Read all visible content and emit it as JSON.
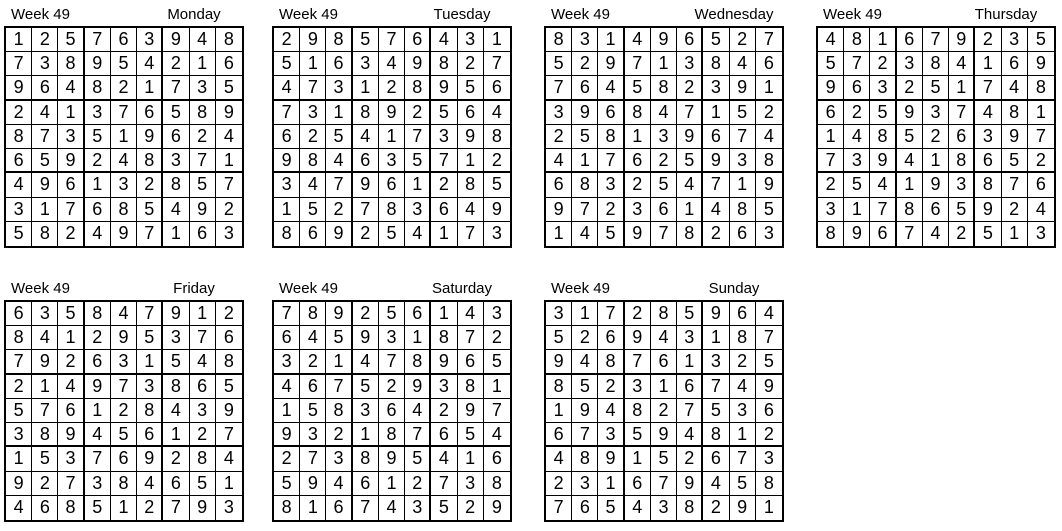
{
  "page": {
    "background": "#ffffff",
    "text_color": "#000000",
    "grid_line_color": "#000000",
    "content_type": "sudoku-solutions-sheet"
  },
  "puzzles": [
    {
      "week_label": "Week 49",
      "day": "Monday",
      "grid": [
        [
          1,
          2,
          5,
          7,
          6,
          3,
          9,
          4,
          8
        ],
        [
          7,
          3,
          8,
          9,
          5,
          4,
          2,
          1,
          6
        ],
        [
          9,
          6,
          4,
          8,
          2,
          1,
          7,
          3,
          5
        ],
        [
          2,
          4,
          1,
          3,
          7,
          6,
          5,
          8,
          9
        ],
        [
          8,
          7,
          3,
          5,
          1,
          9,
          6,
          2,
          4
        ],
        [
          6,
          5,
          9,
          2,
          4,
          8,
          3,
          7,
          1
        ],
        [
          4,
          9,
          6,
          1,
          3,
          2,
          8,
          5,
          7
        ],
        [
          3,
          1,
          7,
          6,
          8,
          5,
          4,
          9,
          2
        ],
        [
          5,
          8,
          2,
          4,
          9,
          7,
          1,
          6,
          3
        ]
      ]
    },
    {
      "week_label": "Week 49",
      "day": "Tuesday",
      "grid": [
        [
          2,
          9,
          8,
          5,
          7,
          6,
          4,
          3,
          1
        ],
        [
          5,
          1,
          6,
          3,
          4,
          9,
          8,
          2,
          7
        ],
        [
          4,
          7,
          3,
          1,
          2,
          8,
          9,
          5,
          6
        ],
        [
          7,
          3,
          1,
          8,
          9,
          2,
          5,
          6,
          4
        ],
        [
          6,
          2,
          5,
          4,
          1,
          7,
          3,
          9,
          8
        ],
        [
          9,
          8,
          4,
          6,
          3,
          5,
          7,
          1,
          2
        ],
        [
          3,
          4,
          7,
          9,
          6,
          1,
          2,
          8,
          5
        ],
        [
          1,
          5,
          2,
          7,
          8,
          3,
          6,
          4,
          9
        ],
        [
          8,
          6,
          9,
          2,
          5,
          4,
          1,
          7,
          3
        ]
      ]
    },
    {
      "week_label": "Week 49",
      "day": "Wednesday",
      "grid": [
        [
          8,
          3,
          1,
          4,
          9,
          6,
          5,
          2,
          7
        ],
        [
          5,
          2,
          9,
          7,
          1,
          3,
          8,
          4,
          6
        ],
        [
          7,
          6,
          4,
          5,
          8,
          2,
          3,
          9,
          1
        ],
        [
          3,
          9,
          6,
          8,
          4,
          7,
          1,
          5,
          2
        ],
        [
          2,
          5,
          8,
          1,
          3,
          9,
          6,
          7,
          4
        ],
        [
          4,
          1,
          7,
          6,
          2,
          5,
          9,
          3,
          8
        ],
        [
          6,
          8,
          3,
          2,
          5,
          4,
          7,
          1,
          9
        ],
        [
          9,
          7,
          2,
          3,
          6,
          1,
          4,
          8,
          5
        ],
        [
          1,
          4,
          5,
          9,
          7,
          8,
          2,
          6,
          3
        ]
      ]
    },
    {
      "week_label": "Week 49",
      "day": "Thursday",
      "grid": [
        [
          4,
          8,
          1,
          6,
          7,
          9,
          2,
          3,
          5
        ],
        [
          5,
          7,
          2,
          3,
          8,
          4,
          1,
          6,
          9
        ],
        [
          9,
          6,
          3,
          2,
          5,
          1,
          7,
          4,
          8
        ],
        [
          6,
          2,
          5,
          9,
          3,
          7,
          4,
          8,
          1
        ],
        [
          1,
          4,
          8,
          5,
          2,
          6,
          3,
          9,
          7
        ],
        [
          7,
          3,
          9,
          4,
          1,
          8,
          6,
          5,
          2
        ],
        [
          2,
          5,
          4,
          1,
          9,
          3,
          8,
          7,
          6
        ],
        [
          3,
          1,
          7,
          8,
          6,
          5,
          9,
          2,
          4
        ],
        [
          8,
          9,
          6,
          7,
          4,
          2,
          5,
          1,
          3
        ]
      ]
    },
    {
      "week_label": "Week 49",
      "day": "Friday",
      "grid": [
        [
          6,
          3,
          5,
          8,
          4,
          7,
          9,
          1,
          2
        ],
        [
          8,
          4,
          1,
          2,
          9,
          5,
          3,
          7,
          6
        ],
        [
          7,
          9,
          2,
          6,
          3,
          1,
          5,
          4,
          8
        ],
        [
          2,
          1,
          4,
          9,
          7,
          3,
          8,
          6,
          5
        ],
        [
          5,
          7,
          6,
          1,
          2,
          8,
          4,
          3,
          9
        ],
        [
          3,
          8,
          9,
          4,
          5,
          6,
          1,
          2,
          7
        ],
        [
          1,
          5,
          3,
          7,
          6,
          9,
          2,
          8,
          4
        ],
        [
          9,
          2,
          7,
          3,
          8,
          4,
          6,
          5,
          1
        ],
        [
          4,
          6,
          8,
          5,
          1,
          2,
          7,
          9,
          3
        ]
      ]
    },
    {
      "week_label": "Week 49",
      "day": "Saturday",
      "grid": [
        [
          7,
          8,
          9,
          2,
          5,
          6,
          1,
          4,
          3
        ],
        [
          6,
          4,
          5,
          9,
          3,
          1,
          8,
          7,
          2
        ],
        [
          3,
          2,
          1,
          4,
          7,
          8,
          9,
          6,
          5
        ],
        [
          4,
          6,
          7,
          5,
          2,
          9,
          3,
          8,
          1
        ],
        [
          1,
          5,
          8,
          3,
          6,
          4,
          2,
          9,
          7
        ],
        [
          9,
          3,
          2,
          1,
          8,
          7,
          6,
          5,
          4
        ],
        [
          2,
          7,
          3,
          8,
          9,
          5,
          4,
          1,
          6
        ],
        [
          5,
          9,
          4,
          6,
          1,
          2,
          7,
          3,
          8
        ],
        [
          8,
          1,
          6,
          7,
          4,
          3,
          5,
          2,
          9
        ]
      ]
    },
    {
      "week_label": "Week 49",
      "day": "Sunday",
      "grid": [
        [
          3,
          1,
          7,
          2,
          8,
          5,
          9,
          6,
          4
        ],
        [
          5,
          2,
          6,
          9,
          4,
          3,
          1,
          8,
          7
        ],
        [
          9,
          4,
          8,
          7,
          6,
          1,
          3,
          2,
          5
        ],
        [
          8,
          5,
          2,
          3,
          1,
          6,
          7,
          4,
          9
        ],
        [
          1,
          9,
          4,
          8,
          2,
          7,
          5,
          3,
          6
        ],
        [
          6,
          7,
          3,
          5,
          9,
          4,
          8,
          1,
          2
        ],
        [
          4,
          8,
          9,
          1,
          5,
          2,
          6,
          7,
          3
        ],
        [
          2,
          3,
          1,
          6,
          7,
          9,
          4,
          5,
          8
        ],
        [
          7,
          6,
          5,
          4,
          3,
          8,
          2,
          9,
          1
        ]
      ]
    }
  ]
}
